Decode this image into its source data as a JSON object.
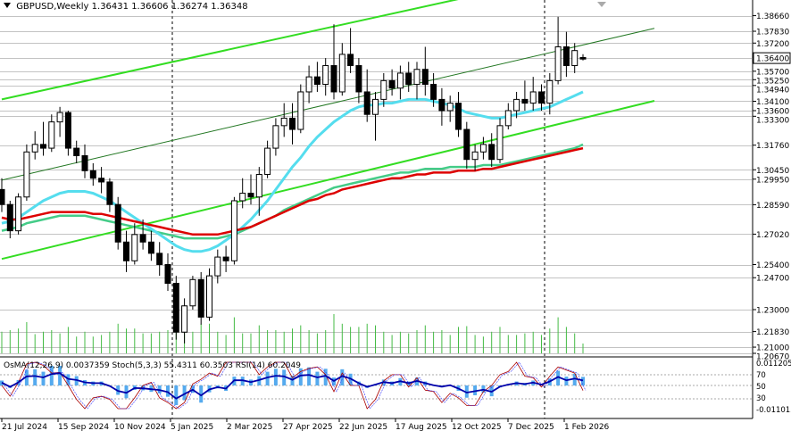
{
  "header": {
    "symbol_timeframe": "GBPUSD,Weekly",
    "ohlc": "1.36431 1.36606 1.36274 1.36348"
  },
  "oscillator_header": "OsMA(12,26,9) 0.0037359  Stoch(5,3,3) 55.4311 60.3503  RSI(14) 60.2049",
  "price_labels": [
    {
      "text": "1.38660",
      "price": 1.3866,
      "style": "plain"
    },
    {
      "text": "1.37830",
      "price": 1.3783,
      "style": "plain"
    },
    {
      "text": "1.37200",
      "price": 1.372,
      "style": "plain"
    },
    {
      "text": "1.36400",
      "price": 1.364,
      "style": "boxed"
    },
    {
      "text": "1.35700",
      "price": 1.357,
      "style": "plain"
    },
    {
      "text": "1.35250",
      "price": 1.3525,
      "style": "plain"
    },
    {
      "text": "1.34940",
      "price": 1.3494,
      "style": "plain"
    },
    {
      "text": "1.34100",
      "price": 1.341,
      "style": "plain"
    },
    {
      "text": "1.33600",
      "price": 1.336,
      "style": "plain"
    },
    {
      "text": "1.33300",
      "price": 1.333,
      "style": "plain"
    },
    {
      "text": "1.31760",
      "price": 1.3176,
      "style": "plain"
    },
    {
      "text": "1.30450",
      "price": 1.3045,
      "style": "plain"
    },
    {
      "text": "1.29950",
      "price": 1.2995,
      "style": "plain"
    },
    {
      "text": "1.28590",
      "price": 1.2859,
      "style": "plain"
    },
    {
      "text": "1.27020",
      "price": 1.2702,
      "style": "plain"
    },
    {
      "text": "1.25400",
      "price": 1.254,
      "style": "plain"
    },
    {
      "text": "1.24700",
      "price": 1.247,
      "style": "plain"
    },
    {
      "text": "1.23000",
      "price": 1.23,
      "style": "plain"
    },
    {
      "text": "1.21830",
      "price": 1.2183,
      "style": "plain"
    },
    {
      "text": "1.21000",
      "price": 1.21,
      "style": "plain"
    },
    {
      "text": "1.20670",
      "price": 1.2067,
      "style": "plain"
    }
  ],
  "oscillator_labels": [
    "0.011205",
    "70",
    "50",
    "30",
    "-0.011015"
  ],
  "date_labels": [
    "21 Jul 2024",
    "15 Sep 2024",
    "10 Nov 2024",
    "5 Jan 2025",
    "2 Mar 2025",
    "27 Apr 2025",
    "22 Jun 2025",
    "17 Aug 2025",
    "12 Oct 2025",
    "7 Dec 2025",
    "1 Feb 2026"
  ],
  "colors": {
    "bull": "#ffffff",
    "bear": "#000000",
    "channel": "#33dd22",
    "ema_red": "#dd0000",
    "ema_cyan": "#55ddee",
    "ema_green": "#44cc88",
    "osma": "#55aaee",
    "rsi": "#0000aa",
    "stoch_main": "#aa0000",
    "stoch_signal": "#3333ff",
    "volume": "#44bb44"
  },
  "chart_data": {
    "type": "candlestick",
    "symbol": "GBPUSD",
    "timeframe": "Weekly",
    "ylim": [
      1.2067,
      1.394
    ],
    "current_price": 1.36348,
    "last_bar_ohlc": {
      "open": 1.36431,
      "high": 1.36606,
      "low": 1.36274,
      "close": 1.36348
    },
    "candles": [
      [
        1.294,
        1.3,
        1.282,
        1.286
      ],
      [
        1.286,
        1.288,
        1.268,
        1.272
      ],
      [
        1.272,
        1.292,
        1.27,
        1.29
      ],
      [
        1.29,
        1.318,
        1.288,
        1.314
      ],
      [
        1.314,
        1.325,
        1.31,
        1.318
      ],
      [
        1.318,
        1.33,
        1.312,
        1.316
      ],
      [
        1.316,
        1.334,
        1.314,
        1.33
      ],
      [
        1.33,
        1.338,
        1.322,
        1.335
      ],
      [
        1.335,
        1.336,
        1.312,
        1.316
      ],
      [
        1.316,
        1.32,
        1.308,
        1.312
      ],
      [
        1.312,
        1.318,
        1.3,
        1.304
      ],
      [
        1.304,
        1.308,
        1.296,
        1.3
      ],
      [
        1.3,
        1.306,
        1.292,
        1.298
      ],
      [
        1.298,
        1.3,
        1.282,
        1.286
      ],
      [
        1.286,
        1.29,
        1.262,
        1.266
      ],
      [
        1.266,
        1.272,
        1.25,
        1.256
      ],
      [
        1.256,
        1.276,
        1.254,
        1.27
      ],
      [
        1.27,
        1.278,
        1.262,
        1.266
      ],
      [
        1.266,
        1.272,
        1.256,
        1.26
      ],
      [
        1.26,
        1.266,
        1.248,
        1.254
      ],
      [
        1.254,
        1.26,
        1.24,
        1.244
      ],
      [
        1.244,
        1.248,
        1.214,
        1.218
      ],
      [
        1.218,
        1.236,
        1.212,
        1.232
      ],
      [
        1.232,
        1.248,
        1.23,
        1.246
      ],
      [
        1.246,
        1.25,
        1.222,
        1.226
      ],
      [
        1.226,
        1.252,
        1.224,
        1.248
      ],
      [
        1.248,
        1.262,
        1.244,
        1.258
      ],
      [
        1.258,
        1.264,
        1.25,
        1.256
      ],
      [
        1.256,
        1.29,
        1.254,
        1.288
      ],
      [
        1.288,
        1.3,
        1.284,
        1.292
      ],
      [
        1.292,
        1.302,
        1.286,
        1.29
      ],
      [
        1.29,
        1.306,
        1.28,
        1.302
      ],
      [
        1.302,
        1.32,
        1.3,
        1.316
      ],
      [
        1.316,
        1.332,
        1.312,
        1.328
      ],
      [
        1.328,
        1.34,
        1.322,
        1.332
      ],
      [
        1.332,
        1.34,
        1.318,
        1.326
      ],
      [
        1.326,
        1.35,
        1.324,
        1.346
      ],
      [
        1.346,
        1.36,
        1.34,
        1.354
      ],
      [
        1.354,
        1.362,
        1.346,
        1.35
      ],
      [
        1.35,
        1.364,
        1.344,
        1.36
      ],
      [
        1.36,
        1.382,
        1.342,
        1.346
      ],
      [
        1.346,
        1.372,
        1.344,
        1.366
      ],
      [
        1.366,
        1.38,
        1.356,
        1.36
      ],
      [
        1.36,
        1.364,
        1.34,
        1.346
      ],
      [
        1.346,
        1.358,
        1.33,
        1.334
      ],
      [
        1.334,
        1.346,
        1.32,
        1.342
      ],
      [
        1.342,
        1.356,
        1.338,
        1.352
      ],
      [
        1.352,
        1.358,
        1.344,
        1.348
      ],
      [
        1.348,
        1.36,
        1.342,
        1.356
      ],
      [
        1.356,
        1.362,
        1.346,
        1.35
      ],
      [
        1.35,
        1.362,
        1.342,
        1.358
      ],
      [
        1.358,
        1.37,
        1.344,
        1.35
      ],
      [
        1.35,
        1.356,
        1.338,
        1.342
      ],
      [
        1.342,
        1.348,
        1.328,
        1.336
      ],
      [
        1.336,
        1.344,
        1.33,
        1.34
      ],
      [
        1.34,
        1.346,
        1.322,
        1.326
      ],
      [
        1.326,
        1.33,
        1.305,
        1.31
      ],
      [
        1.31,
        1.318,
        1.304,
        1.314
      ],
      [
        1.314,
        1.322,
        1.31,
        1.318
      ],
      [
        1.318,
        1.324,
        1.306,
        1.31
      ],
      [
        1.31,
        1.332,
        1.308,
        1.328
      ],
      [
        1.328,
        1.34,
        1.326,
        1.336
      ],
      [
        1.336,
        1.346,
        1.332,
        1.342
      ],
      [
        1.342,
        1.352,
        1.336,
        1.34
      ],
      [
        1.34,
        1.354,
        1.336,
        1.346
      ],
      [
        1.346,
        1.35,
        1.336,
        1.34
      ],
      [
        1.34,
        1.356,
        1.334,
        1.352
      ],
      [
        1.352,
        1.386,
        1.35,
        1.37
      ],
      [
        1.37,
        1.378,
        1.354,
        1.36
      ],
      [
        1.36,
        1.372,
        1.356,
        1.368
      ],
      [
        1.36431,
        1.36606,
        1.36274,
        1.36348
      ]
    ],
    "ema_red": [
      1.279,
      1.278,
      1.278,
      1.279,
      1.28,
      1.281,
      1.282,
      1.282,
      1.282,
      1.282,
      1.282,
      1.281,
      1.281,
      1.28,
      1.279,
      1.278,
      1.277,
      1.276,
      1.275,
      1.274,
      1.273,
      1.272,
      1.271,
      1.27,
      1.27,
      1.27,
      1.27,
      1.271,
      1.272,
      1.273,
      1.274,
      1.276,
      1.278,
      1.28,
      1.282,
      1.284,
      1.286,
      1.288,
      1.289,
      1.291,
      1.292,
      1.294,
      1.295,
      1.296,
      1.297,
      1.298,
      1.299,
      1.3,
      1.3,
      1.301,
      1.302,
      1.302,
      1.303,
      1.303,
      1.303,
      1.304,
      1.304,
      1.304,
      1.305,
      1.305,
      1.306,
      1.307,
      1.308,
      1.309,
      1.31,
      1.311,
      1.312,
      1.313,
      1.314,
      1.315,
      1.316
    ],
    "ema_cyan": [
      1.276,
      1.277,
      1.279,
      1.282,
      1.285,
      1.288,
      1.29,
      1.292,
      1.293,
      1.293,
      1.293,
      1.292,
      1.29,
      1.288,
      1.285,
      1.282,
      1.279,
      1.276,
      1.273,
      1.27,
      1.267,
      1.264,
      1.262,
      1.261,
      1.261,
      1.262,
      1.264,
      1.267,
      1.27,
      1.274,
      1.278,
      1.283,
      1.288,
      1.294,
      1.3,
      1.306,
      1.311,
      1.317,
      1.322,
      1.326,
      1.33,
      1.333,
      1.336,
      1.338,
      1.339,
      1.339,
      1.34,
      1.34,
      1.341,
      1.342,
      1.342,
      1.342,
      1.341,
      1.34,
      1.339,
      1.337,
      1.335,
      1.334,
      1.333,
      1.332,
      1.332,
      1.333,
      1.334,
      1.335,
      1.336,
      1.337,
      1.338,
      1.34,
      1.342,
      1.344,
      1.346
    ],
    "ema_green": [
      1.272,
      1.273,
      1.274,
      1.276,
      1.277,
      1.278,
      1.279,
      1.28,
      1.28,
      1.28,
      1.28,
      1.279,
      1.278,
      1.277,
      1.276,
      1.275,
      1.274,
      1.273,
      1.272,
      1.271,
      1.27,
      1.269,
      1.268,
      1.268,
      1.268,
      1.268,
      1.268,
      1.269,
      1.27,
      1.272,
      1.274,
      1.276,
      1.278,
      1.28,
      1.283,
      1.285,
      1.287,
      1.289,
      1.291,
      1.293,
      1.295,
      1.296,
      1.297,
      1.298,
      1.299,
      1.3,
      1.301,
      1.302,
      1.303,
      1.303,
      1.304,
      1.305,
      1.305,
      1.305,
      1.306,
      1.306,
      1.306,
      1.306,
      1.307,
      1.307,
      1.307,
      1.308,
      1.309,
      1.31,
      1.311,
      1.312,
      1.313,
      1.314,
      1.315,
      1.316,
      1.318
    ],
    "channel_upper": {
      "from": [
        0,
        1.342
      ],
      "to": [
        70,
        1.41
      ]
    },
    "channel_lower": {
      "from": [
        0,
        1.257
      ],
      "to": [
        70,
        1.332
      ]
    },
    "channel_mid": {
      "from": [
        0,
        1.299
      ],
      "to": [
        70,
        1.371
      ]
    }
  }
}
